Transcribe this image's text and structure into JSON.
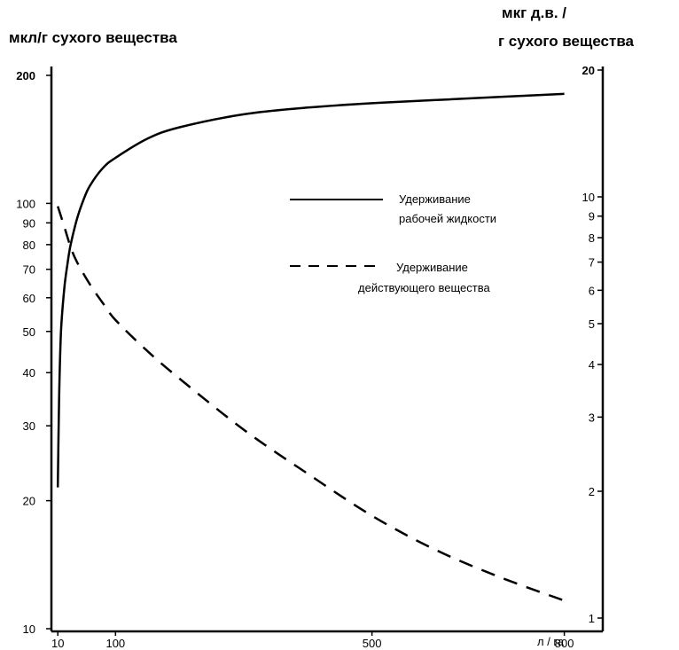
{
  "chart_data": {
    "type": "line",
    "left_axis_label": "мкл/г сухого вещества",
    "right_axis_label_line1": "мкг д.в. /",
    "right_axis_label_line2": "г сухого вещества",
    "x_unit_label": "л / га",
    "x_ticks": [
      10,
      100,
      500,
      800
    ],
    "x_range": [
      0,
      860
    ],
    "left_scale": "log",
    "left_ylim": [
      10,
      200
    ],
    "left_ticks": [
      10,
      20,
      30,
      40,
      50,
      60,
      70,
      80,
      90,
      100,
      200
    ],
    "right_scale": "log",
    "right_ylim": [
      1,
      20
    ],
    "right_ticks": [
      1,
      2,
      3,
      4,
      5,
      6,
      7,
      8,
      9,
      10,
      20
    ],
    "series": [
      {
        "name": "Удерживание рабочей жидкости",
        "axis": "left",
        "style": "solid",
        "x": [
          10,
          12,
          15,
          20,
          25,
          30,
          40,
          50,
          60,
          80,
          100,
          150,
          200,
          300,
          400,
          500,
          600,
          700,
          800
        ],
        "y": [
          21.5,
          35,
          50,
          63,
          72,
          80,
          92,
          102,
          110,
          121,
          128,
          142,
          151,
          162,
          168,
          172,
          175,
          178,
          181
        ]
      },
      {
        "name": "Удерживание действующего вещества",
        "axis": "right",
        "style": "dashed",
        "x": [
          10,
          20,
          30,
          40,
          60,
          80,
          100,
          150,
          200,
          300,
          400,
          500,
          600,
          700,
          800
        ],
        "y": [
          9.5,
          8.5,
          7.6,
          7.0,
          6.2,
          5.6,
          5.1,
          4.3,
          3.7,
          2.8,
          2.2,
          1.75,
          1.45,
          1.25,
          1.1
        ]
      }
    ],
    "legend": [
      {
        "label_line1": "Удерживание",
        "label_line2": "рабочей жидкости",
        "style": "solid"
      },
      {
        "label_line1": "Удерживание",
        "label_line2": "действующего вещества",
        "style": "dashed"
      }
    ],
    "legend_position": "center-right",
    "grid": false,
    "line_color": "#000000"
  }
}
